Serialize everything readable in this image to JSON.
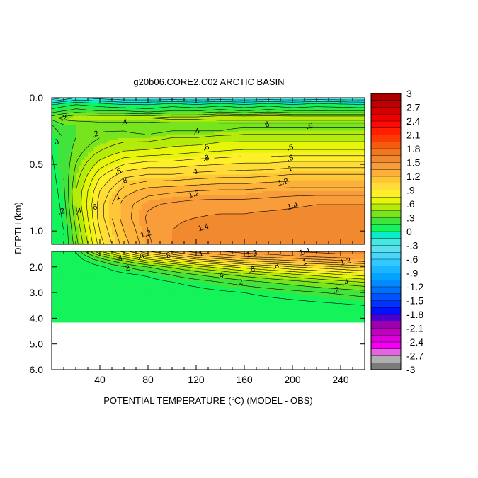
{
  "chart_data": {
    "type": "heatmap",
    "title": "g20b06.CORE2.C02 ARCTIC BASIN",
    "xlabel_prefix": "POTENTIAL TEMPERATURE (",
    "xlabel_unit_sup": "o",
    "xlabel_suffix": "C) (MODEL - OBS)",
    "ylabel": "DEPTH (km)",
    "x": {
      "range": [
        0,
        260
      ],
      "tick_labels": [
        {
          "value": 40,
          "label": "40"
        },
        {
          "value": 80,
          "label": "80"
        },
        {
          "value": 120,
          "label": "120"
        },
        {
          "value": 160,
          "label": "160"
        },
        {
          "value": 200,
          "label": "200"
        },
        {
          "value": 240,
          "label": "240"
        }
      ],
      "minor_step": 10
    },
    "upper_panel": {
      "depth_range_km": [
        0.0,
        1.1
      ],
      "tick_labels": [
        {
          "value": 0.0,
          "label": "0.0"
        },
        {
          "value": 0.5,
          "label": "0.5"
        },
        {
          "value": 1.0,
          "label": "1.0"
        }
      ]
    },
    "lower_panel": {
      "depth_range_km": [
        1.4,
        6.0
      ],
      "tick_labels": [
        {
          "value": 2.0,
          "label": "2.0"
        },
        {
          "value": 3.0,
          "label": "3.0"
        },
        {
          "value": 4.0,
          "label": "4.0"
        },
        {
          "value": 5.0,
          "label": "5.0"
        },
        {
          "value": 6.0,
          "label": "6.0"
        }
      ],
      "data_bottom_km": 4.15
    },
    "colorbar": {
      "min": -3,
      "max": 3,
      "step": 0.15,
      "labels": [
        "3",
        "2.7",
        "2.4",
        "2.1",
        "1.8",
        "1.5",
        "1.2",
        ".9",
        ".6",
        ".3",
        "0",
        "-.3",
        "-.6",
        "-.9",
        "-1.2",
        "-1.5",
        "-1.8",
        "-2.1",
        "-2.4",
        "-2.7",
        "-3"
      ],
      "label_values": [
        3,
        2.7,
        2.4,
        2.1,
        1.8,
        1.5,
        1.2,
        0.9,
        0.6,
        0.3,
        0,
        -0.3,
        -0.6,
        -0.9,
        -1.2,
        -1.5,
        -1.8,
        -2.1,
        -2.4,
        -2.7,
        -3
      ]
    },
    "field_upper": {
      "x": [
        0,
        10,
        20,
        40,
        60,
        80,
        100,
        120,
        140,
        160,
        180,
        200,
        220,
        260
      ],
      "depth_km": [
        0.0,
        0.05,
        0.1,
        0.15,
        0.2,
        0.25,
        0.3,
        0.4,
        0.5,
        0.6,
        0.7,
        0.8,
        0.9,
        1.0,
        1.1
      ],
      "values": [
        [
          -0.4,
          -0.3,
          -0.2,
          -0.25,
          -0.3,
          -0.3,
          -0.3,
          -0.3,
          -0.3,
          -0.3,
          -0.3,
          -0.3,
          -0.3,
          -0.3
        ],
        [
          0.0,
          0.05,
          0.1,
          0.05,
          0.0,
          0.0,
          0.05,
          0.0,
          0.05,
          0.0,
          0.05,
          0.0,
          0.05,
          0.0
        ],
        [
          0.15,
          0.2,
          0.25,
          0.2,
          0.2,
          0.15,
          0.2,
          0.2,
          0.25,
          0.2,
          0.25,
          0.2,
          0.2,
          0.2
        ],
        [
          0.35,
          0.45,
          0.5,
          0.5,
          0.5,
          0.5,
          0.55,
          0.55,
          0.6,
          0.6,
          0.6,
          0.6,
          0.6,
          0.6
        ],
        [
          0.2,
          0.3,
          0.3,
          0.35,
          0.35,
          0.35,
          0.35,
          0.35,
          0.35,
          0.35,
          0.35,
          0.35,
          0.35,
          0.35
        ],
        [
          0.15,
          0.25,
          0.3,
          0.4,
          0.4,
          0.35,
          0.4,
          0.4,
          0.4,
          0.45,
          0.45,
          0.45,
          0.45,
          0.45
        ],
        [
          0.12,
          0.2,
          0.3,
          0.4,
          0.45,
          0.45,
          0.5,
          0.5,
          0.55,
          0.55,
          0.55,
          0.55,
          0.55,
          0.55
        ],
        [
          0.1,
          0.2,
          0.35,
          0.5,
          0.6,
          0.62,
          0.65,
          0.68,
          0.7,
          0.72,
          0.72,
          0.72,
          0.72,
          0.72
        ],
        [
          0.08,
          0.2,
          0.4,
          0.65,
          0.8,
          0.85,
          0.85,
          0.88,
          0.9,
          0.92,
          0.92,
          0.95,
          0.95,
          0.95
        ],
        [
          0.05,
          0.2,
          0.45,
          0.8,
          1.0,
          1.05,
          1.05,
          1.08,
          1.1,
          1.1,
          1.12,
          1.15,
          1.15,
          1.15
        ],
        [
          0.02,
          0.18,
          0.5,
          0.9,
          1.15,
          1.25,
          1.28,
          1.3,
          1.32,
          1.32,
          1.35,
          1.35,
          1.35,
          1.35
        ],
        [
          0.0,
          0.15,
          0.5,
          0.95,
          1.25,
          1.38,
          1.42,
          1.45,
          1.45,
          1.45,
          1.45,
          1.48,
          1.5,
          1.5
        ],
        [
          0.0,
          0.12,
          0.45,
          0.95,
          1.25,
          1.42,
          1.48,
          1.5,
          1.52,
          1.52,
          1.55,
          1.55,
          1.55,
          1.55
        ],
        [
          0.0,
          0.1,
          0.4,
          0.9,
          1.2,
          1.4,
          1.5,
          1.55,
          1.55,
          1.55,
          1.58,
          1.58,
          1.58,
          1.58
        ],
        [
          0.0,
          0.1,
          0.35,
          0.85,
          1.15,
          1.38,
          1.5,
          1.55,
          1.55,
          1.58,
          1.6,
          1.6,
          1.6,
          1.6
        ]
      ]
    },
    "field_lower": {
      "x": [
        0,
        20,
        40,
        80,
        120,
        160,
        200,
        240,
        260
      ],
      "depth_km": [
        1.4,
        1.6,
        1.8,
        2.0,
        2.3,
        2.6,
        3.0,
        3.5,
        4.15
      ],
      "values": [
        [
          0.0,
          0.1,
          0.6,
          1.1,
          1.35,
          1.45,
          1.5,
          1.55,
          1.55
        ],
        [
          0.0,
          0.05,
          0.35,
          0.85,
          1.15,
          1.3,
          1.38,
          1.45,
          1.45
        ],
        [
          0.0,
          0.02,
          0.18,
          0.55,
          0.85,
          1.05,
          1.15,
          1.25,
          1.3
        ],
        [
          0.0,
          0.0,
          0.08,
          0.3,
          0.55,
          0.75,
          0.9,
          1.0,
          1.05
        ],
        [
          0.0,
          0.0,
          0.03,
          0.12,
          0.3,
          0.45,
          0.58,
          0.7,
          0.75
        ],
        [
          0.0,
          0.0,
          0.0,
          0.05,
          0.14,
          0.25,
          0.35,
          0.45,
          0.5
        ],
        [
          0.0,
          0.0,
          0.0,
          0.02,
          0.05,
          0.1,
          0.16,
          0.22,
          0.25
        ],
        [
          0.0,
          0.0,
          0.0,
          0.0,
          0.02,
          0.03,
          0.05,
          0.08,
          0.1
        ],
        [
          0.0,
          0.0,
          0.0,
          0.0,
          0.0,
          0.0,
          0.02,
          0.03,
          0.03
        ]
      ]
    },
    "contour_labels_upper": [
      {
        "x": 128,
        "depth": 0.37,
        "text": ".6"
      },
      {
        "x": 198,
        "depth": 0.37,
        "text": ".6"
      },
      {
        "x": 128,
        "depth": 0.45,
        "text": ".8"
      },
      {
        "x": 198,
        "depth": 0.45,
        "text": ".8"
      },
      {
        "x": 60,
        "depth": 0.62,
        "text": ".8"
      },
      {
        "x": 120,
        "depth": 0.55,
        "text": "1"
      },
      {
        "x": 198,
        "depth": 0.53,
        "text": "1"
      },
      {
        "x": 55,
        "depth": 0.74,
        "text": "1"
      },
      {
        "x": 118,
        "depth": 0.72,
        "text": "1.2"
      },
      {
        "x": 192,
        "depth": 0.63,
        "text": "1.2"
      },
      {
        "x": 200,
        "depth": 0.81,
        "text": "1.4"
      },
      {
        "x": 126,
        "depth": 0.97,
        "text": "1.4"
      },
      {
        "x": 78,
        "depth": 1.02,
        "text": "1.2"
      },
      {
        "x": 55,
        "depth": 0.55,
        "text": ".6"
      },
      {
        "x": 35,
        "depth": 0.82,
        "text": ".6"
      },
      {
        "x": 22,
        "depth": 0.85,
        "text": ".4"
      },
      {
        "x": 8,
        "depth": 0.85,
        "text": ".2"
      },
      {
        "x": 36,
        "depth": 0.27,
        "text": ".2"
      },
      {
        "x": 10,
        "depth": 0.15,
        "text": ".2"
      },
      {
        "x": 60,
        "depth": 0.18,
        "text": ".4"
      },
      {
        "x": 120,
        "depth": 0.25,
        "text": ".4"
      },
      {
        "x": 178,
        "depth": 0.2,
        "text": ".6"
      },
      {
        "x": 214,
        "depth": 0.21,
        "text": ".6"
      },
      {
        "x": 4,
        "depth": 0.33,
        "text": "0"
      }
    ],
    "contour_labels_lower": [
      {
        "x": 56,
        "depth": 1.65,
        "text": ".4"
      },
      {
        "x": 62,
        "depth": 2.05,
        "text": ".2"
      },
      {
        "x": 74,
        "depth": 1.58,
        "text": ".6"
      },
      {
        "x": 96,
        "depth": 1.55,
        "text": ".8"
      },
      {
        "x": 124,
        "depth": 1.48,
        "text": "1"
      },
      {
        "x": 166,
        "depth": 1.48,
        "text": "1.2"
      },
      {
        "x": 210,
        "depth": 1.4,
        "text": "1.4"
      },
      {
        "x": 244,
        "depth": 1.78,
        "text": "1.2"
      },
      {
        "x": 210,
        "depth": 1.8,
        "text": "1"
      },
      {
        "x": 186,
        "depth": 1.95,
        "text": ".8"
      },
      {
        "x": 166,
        "depth": 2.1,
        "text": ".6"
      },
      {
        "x": 140,
        "depth": 2.33,
        "text": ".4"
      },
      {
        "x": 156,
        "depth": 2.6,
        "text": ".2"
      },
      {
        "x": 244,
        "depth": 2.6,
        "text": ".4"
      },
      {
        "x": 236,
        "depth": 2.9,
        "text": ".2"
      }
    ]
  }
}
